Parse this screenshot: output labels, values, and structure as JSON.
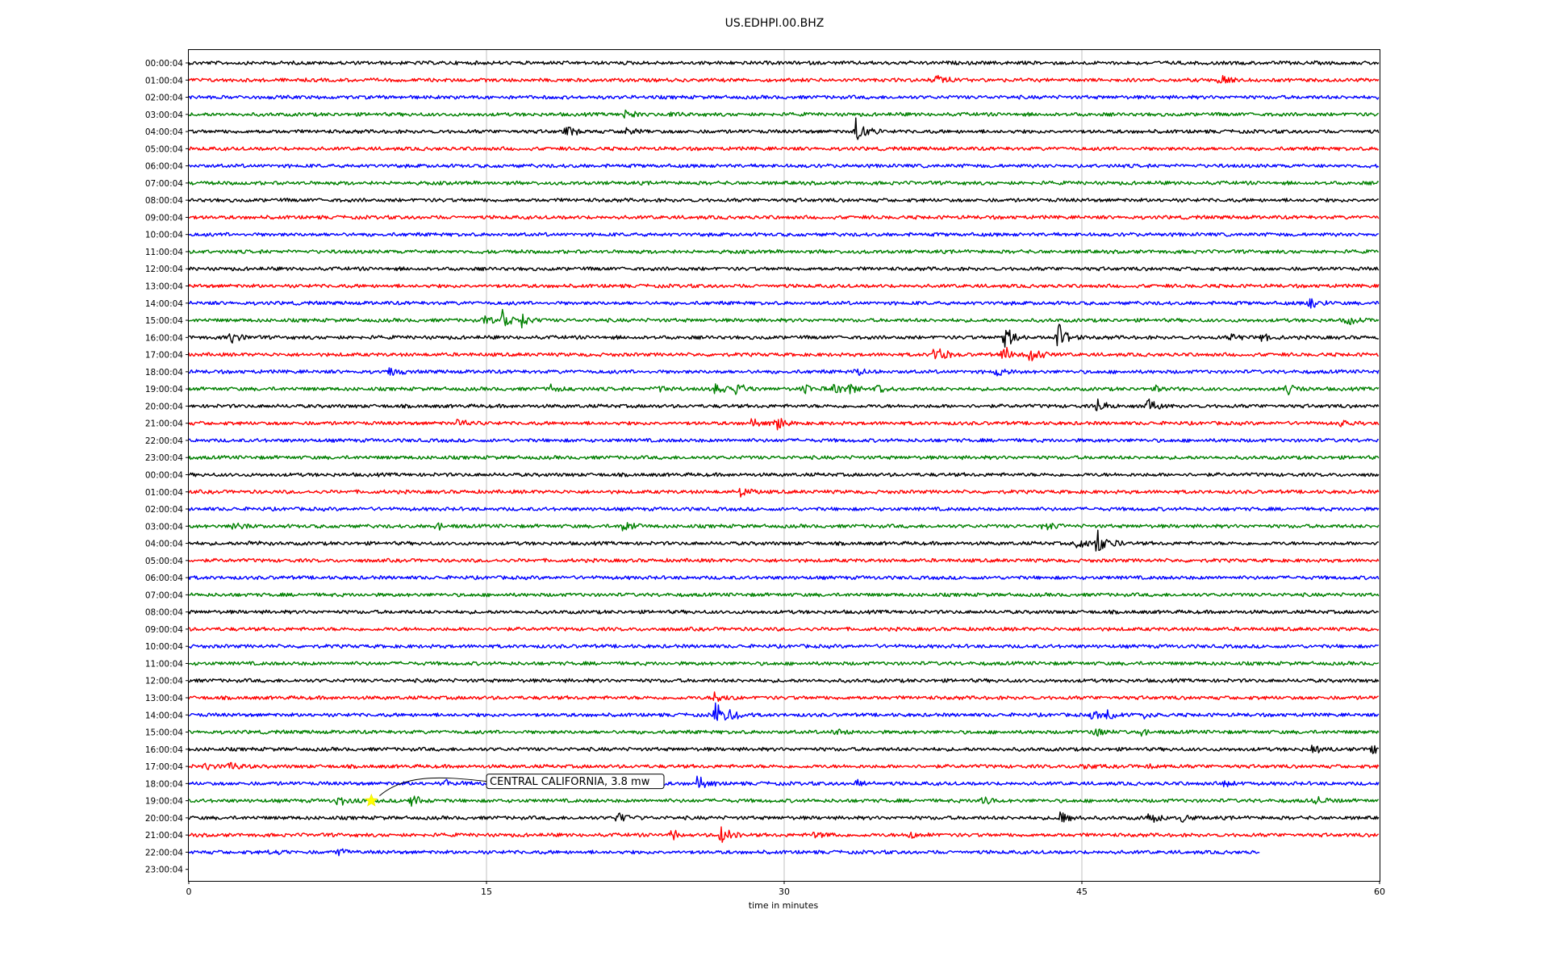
{
  "chart_data": {
    "type": "line",
    "title": "US.EDHPI.00.BHZ",
    "xlabel": "time in minutes",
    "ylabel": "",
    "xlim": [
      0,
      60
    ],
    "x_ticks": [
      "0",
      "15",
      "30",
      "45",
      "60"
    ],
    "grid": "vertical",
    "series_colors": [
      "#000000",
      "#ff0000",
      "#0000ff",
      "#008000"
    ],
    "row_labels": [
      "00:00:04",
      "01:00:04",
      "02:00:04",
      "03:00:04",
      "04:00:04",
      "05:00:04",
      "06:00:04",
      "07:00:04",
      "08:00:04",
      "09:00:04",
      "10:00:04",
      "11:00:04",
      "12:00:04",
      "13:00:04",
      "14:00:04",
      "15:00:04",
      "16:00:04",
      "17:00:04",
      "18:00:04",
      "19:00:04",
      "20:00:04",
      "21:00:04",
      "22:00:04",
      "23:00:04",
      "00:00:04",
      "01:00:04",
      "02:00:04",
      "03:00:04",
      "04:00:04",
      "05:00:04",
      "06:00:04",
      "07:00:04",
      "08:00:04",
      "09:00:04",
      "10:00:04",
      "11:00:04",
      "12:00:04",
      "13:00:04",
      "14:00:04",
      "15:00:04",
      "16:00:04",
      "17:00:04",
      "18:00:04",
      "19:00:04",
      "20:00:04",
      "21:00:04",
      "22:00:04",
      "23:00:04"
    ],
    "data_end_minute": 54,
    "events": [
      [
        1,
        37.5,
        1.4
      ],
      [
        1,
        51.9,
        1.0
      ],
      [
        3,
        22.0,
        0.7
      ],
      [
        3,
        24.3,
        0.5
      ],
      [
        4,
        19.0,
        0.9
      ],
      [
        4,
        33.6,
        2.6
      ],
      [
        4,
        22.0,
        0.5
      ],
      [
        14,
        56.5,
        1.2
      ],
      [
        15,
        15.8,
        1.6
      ],
      [
        15,
        16.8,
        0.9
      ],
      [
        15,
        14.9,
        0.7
      ],
      [
        15,
        58.3,
        0.7
      ],
      [
        16,
        2.1,
        1.1
      ],
      [
        16,
        41.1,
        2.0
      ],
      [
        16,
        43.8,
        2.2
      ],
      [
        16,
        52.5,
        0.7
      ],
      [
        16,
        54.0,
        0.6
      ],
      [
        17,
        37.6,
        1.7
      ],
      [
        17,
        41.0,
        1.5
      ],
      [
        17,
        42.4,
        1.6
      ],
      [
        18,
        10.0,
        0.8
      ],
      [
        18,
        33.6,
        0.6
      ],
      [
        18,
        40.7,
        0.8
      ],
      [
        19,
        18.2,
        0.7
      ],
      [
        19,
        23.6,
        0.7
      ],
      [
        19,
        26.5,
        0.9
      ],
      [
        19,
        27.6,
        1.0
      ],
      [
        19,
        31.0,
        0.7
      ],
      [
        19,
        32.5,
        0.8
      ],
      [
        19,
        33.3,
        1.0
      ],
      [
        19,
        34.7,
        0.7
      ],
      [
        19,
        48.8,
        0.6
      ],
      [
        19,
        55.3,
        1.0
      ],
      [
        20,
        45.8,
        1.3
      ],
      [
        20,
        48.3,
        1.1
      ],
      [
        21,
        13.6,
        0.7
      ],
      [
        21,
        28.2,
        0.8
      ],
      [
        21,
        29.6,
        1.2
      ],
      [
        21,
        58.0,
        0.7
      ],
      [
        25,
        27.7,
        1.0
      ],
      [
        27,
        2.2,
        0.8
      ],
      [
        27,
        12.5,
        0.6
      ],
      [
        27,
        21.9,
        1.0
      ],
      [
        27,
        43.0,
        0.8
      ],
      [
        28,
        44.8,
        1.4
      ],
      [
        28,
        45.8,
        2.6
      ],
      [
        28,
        2.9,
        0.4
      ],
      [
        37,
        26.5,
        1.0
      ],
      [
        38,
        26.5,
        2.4
      ],
      [
        38,
        27.3,
        0.8
      ],
      [
        38,
        45.5,
        0.9
      ],
      [
        38,
        46.3,
        0.8
      ],
      [
        38,
        48.0,
        0.6
      ],
      [
        39,
        45.6,
        0.9
      ],
      [
        39,
        32.5,
        0.6
      ],
      [
        39,
        48.0,
        0.5
      ],
      [
        40,
        56.6,
        0.8
      ],
      [
        40,
        59.6,
        0.8
      ],
      [
        41,
        2.0,
        0.9
      ],
      [
        41,
        0.8,
        0.6
      ],
      [
        41,
        45.0,
        0.6
      ],
      [
        41,
        48.3,
        0.6
      ],
      [
        42,
        25.5,
        1.4
      ],
      [
        42,
        33.6,
        0.7
      ],
      [
        42,
        13.0,
        0.6
      ],
      [
        42,
        52.2,
        0.6
      ],
      [
        43,
        7.5,
        0.9
      ],
      [
        43,
        11.2,
        1.0
      ],
      [
        43,
        40.0,
        0.7
      ],
      [
        43,
        56.8,
        0.8
      ],
      [
        44,
        21.6,
        1.0
      ],
      [
        44,
        43.9,
        0.9
      ],
      [
        44,
        48.3,
        1.1
      ],
      [
        44,
        50.0,
        0.6
      ],
      [
        45,
        24.3,
        0.8
      ],
      [
        45,
        26.8,
        1.8
      ],
      [
        45,
        36.3,
        0.6
      ],
      [
        45,
        31.5,
        0.5
      ],
      [
        46,
        7.6,
        0.5
      ],
      [
        46,
        4.1,
        0.4
      ]
    ],
    "annotations": [
      {
        "text": "CENTRAL CALIFORNIA, 3.8 mw",
        "row": 43,
        "minute": 9.2,
        "marker": "star",
        "marker_color": "#ffff00"
      }
    ]
  }
}
